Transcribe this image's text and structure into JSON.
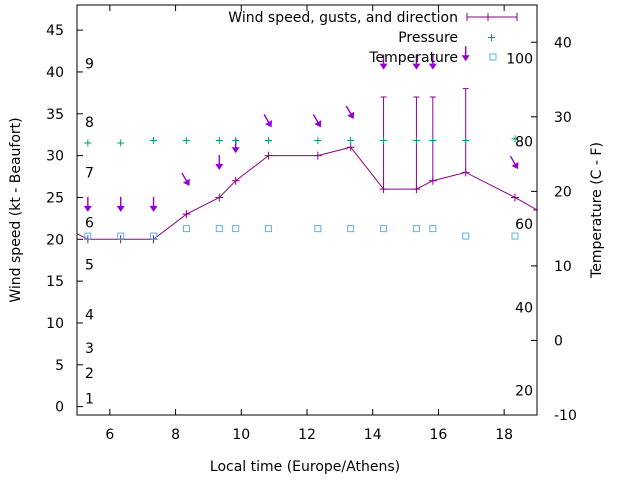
{
  "chart_data": {
    "type": "line",
    "xlabel": "Local time (Europe/Athens)",
    "ylabel_left": "Wind speed (kt - Beaufort)",
    "ylabel_right": "Temperature (C - F)",
    "xlim": [
      5,
      19
    ],
    "ylim_left": [
      -1,
      48
    ],
    "ylim_right": [
      -10,
      45
    ],
    "x_ticks": [
      6,
      8,
      10,
      12,
      14,
      16,
      18
    ],
    "y_left_ticks": [
      0,
      5,
      10,
      15,
      20,
      25,
      30,
      35,
      40,
      45
    ],
    "y_right_ticks": [
      -10,
      0,
      10,
      20,
      30,
      40
    ],
    "beaufort_labels": [
      {
        "label": "1",
        "kt": 1
      },
      {
        "label": "2",
        "kt": 4
      },
      {
        "label": "3",
        "kt": 7
      },
      {
        "label": "4",
        "kt": 11
      },
      {
        "label": "5",
        "kt": 17
      },
      {
        "label": "6",
        "kt": 22
      },
      {
        "label": "7",
        "kt": 28
      },
      {
        "label": "8",
        "kt": 34
      },
      {
        "label": "9",
        "kt": 41
      }
    ],
    "fahrenheit_labels": [
      {
        "label": "20",
        "temp_c": -6.7
      },
      {
        "label": "40",
        "temp_c": 4.4
      },
      {
        "label": "60",
        "temp_c": 15.6
      },
      {
        "label": "80",
        "temp_c": 26.7
      },
      {
        "label": "100",
        "temp_c": 37.8
      }
    ],
    "legend": {
      "wind": "Wind speed, gusts, and direction",
      "pressure": "Pressure",
      "temperature": "Temperature"
    },
    "legend_position": "top-right",
    "colors": {
      "wind": "#8B008B",
      "pressure": "#009E73",
      "temperature": "#56B4E9",
      "arrows": "#9400D3"
    },
    "wind_speed": {
      "x": [
        4.83,
        5.33,
        6.33,
        7.33,
        8.33,
        9.33,
        9.83,
        10.83,
        12.33,
        13.33,
        14.33,
        15.33,
        15.83,
        16.83,
        18.33,
        19
      ],
      "y": [
        21,
        20,
        20,
        20,
        23,
        25,
        27,
        30,
        30,
        31,
        26,
        26,
        27,
        28,
        25,
        23.5
      ]
    },
    "gusts": [
      {
        "x": 14.33,
        "low": 26,
        "high": 37
      },
      {
        "x": 15.33,
        "low": 26,
        "high": 37
      },
      {
        "x": 15.83,
        "low": 27,
        "high": 37
      },
      {
        "x": 16.83,
        "low": 28,
        "high": 38
      }
    ],
    "wind_direction": {
      "x": [
        5.33,
        6.33,
        7.33,
        8.33,
        9.33,
        9.83,
        10.83,
        12.33,
        13.33,
        14.33,
        15.33,
        15.83,
        16.83,
        18.33
      ],
      "y": [
        24,
        24,
        24,
        27,
        29,
        31,
        34,
        34,
        35,
        41,
        41,
        41,
        42,
        29
      ],
      "deg": [
        0,
        0,
        0,
        330,
        0,
        0,
        330,
        330,
        330,
        0,
        0,
        0,
        0,
        330
      ]
    },
    "pressure_markers": {
      "x": [
        5.33,
        6.33,
        7.33,
        8.33,
        9.33,
        9.83,
        10.83,
        12.33,
        13.33,
        14.33,
        15.33,
        15.83,
        16.83,
        18.33
      ],
      "y": [
        31.5,
        31.5,
        31.8,
        31.8,
        31.8,
        31.8,
        31.8,
        31.8,
        31.8,
        31.8,
        31.8,
        31.8,
        31.8,
        32
      ]
    },
    "temperature": {
      "x": [
        5.33,
        6.33,
        7.33,
        8.33,
        9.33,
        9.83,
        10.83,
        12.33,
        13.33,
        14.33,
        15.33,
        15.83,
        16.83,
        18.33
      ],
      "y": [
        14,
        14,
        14,
        15,
        15,
        15,
        15,
        15,
        15,
        15,
        15,
        15,
        14,
        14
      ]
    }
  }
}
